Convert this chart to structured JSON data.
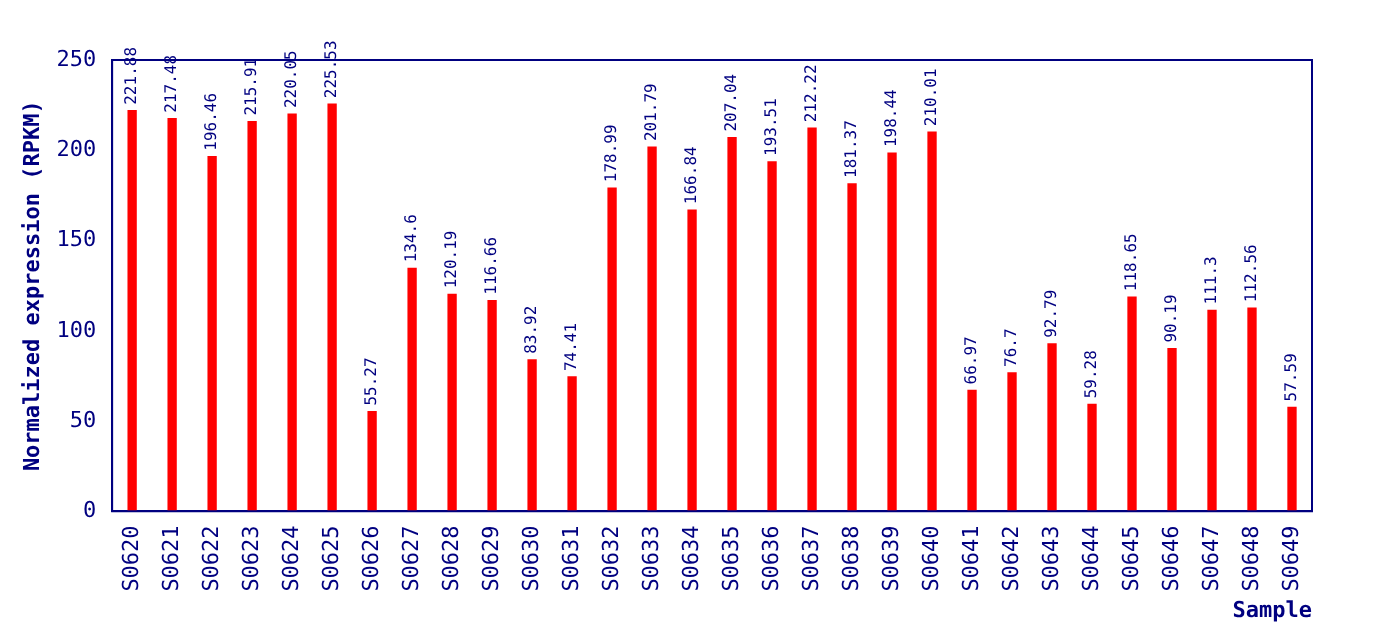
{
  "chart_data": {
    "type": "bar",
    "xlabel": "Sample",
    "ylabel": "Normalized expression (RPKM)",
    "categories": [
      "S0620",
      "S0621",
      "S0622",
      "S0623",
      "S0624",
      "S0625",
      "S0626",
      "S0627",
      "S0628",
      "S0629",
      "S0630",
      "S0631",
      "S0632",
      "S0633",
      "S0634",
      "S0635",
      "S0636",
      "S0637",
      "S0638",
      "S0639",
      "S0640",
      "S0641",
      "S0642",
      "S0643",
      "S0644",
      "S0645",
      "S0646",
      "S0647",
      "S0648",
      "S0649"
    ],
    "values": [
      221.88,
      217.48,
      196.46,
      215.91,
      220.05,
      225.53,
      55.27,
      134.6,
      120.19,
      116.66,
      83.92,
      74.41,
      178.99,
      201.79,
      166.84,
      207.04,
      193.51,
      212.22,
      181.37,
      198.44,
      210.01,
      66.97,
      76.7,
      92.79,
      59.28,
      118.65,
      90.19,
      111.3,
      112.56,
      57.59
    ],
    "color": "#ff0000",
    "ylim": [
      0,
      250
    ],
    "yticks": [
      0,
      50,
      100,
      150,
      200,
      250
    ],
    "grid": false,
    "legend": false,
    "data_labels": true
  }
}
